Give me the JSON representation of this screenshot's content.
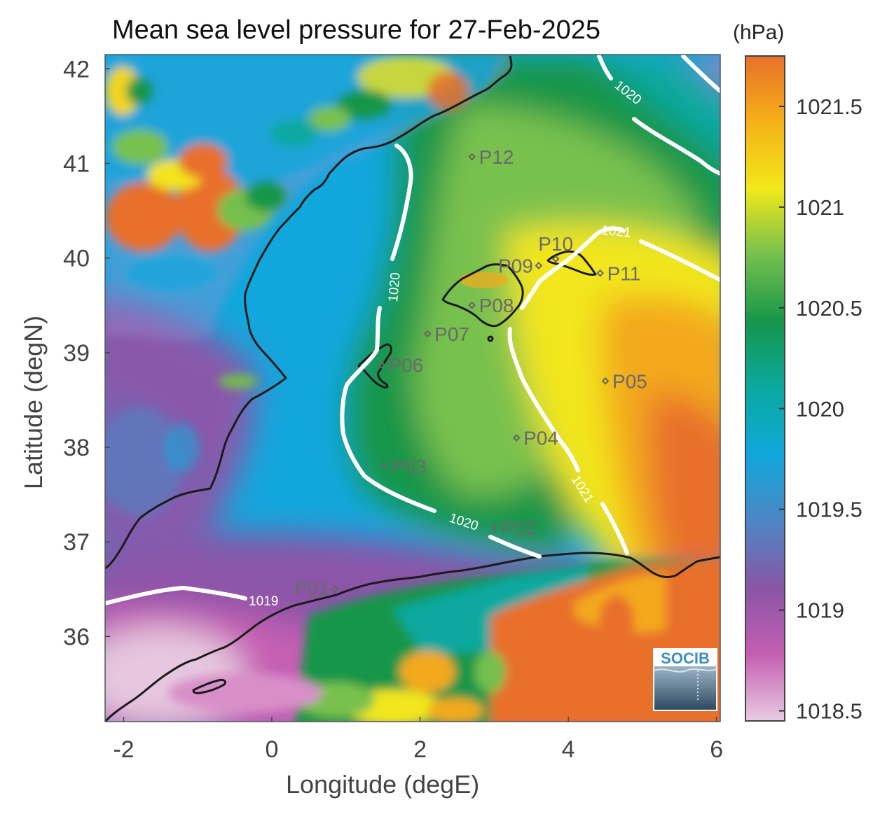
{
  "title": "Mean sea level pressure for 27-Feb-2025",
  "colorbar": {
    "unit": "(hPa)",
    "min": 1018.45,
    "max": 1021.75,
    "ticks": [
      "1018.5",
      "1019",
      "1019.5",
      "1020",
      "1020.5",
      "1021",
      "1021.5"
    ],
    "palette": [
      "#e9cbe2",
      "#c45fb2",
      "#8a55a6",
      "#4d86c4",
      "#11a7db",
      "#0aa9a0",
      "#16964a",
      "#74c04d",
      "#f2e81a",
      "#f5b117",
      "#e8702b"
    ]
  },
  "axes": {
    "xlabel": "Longitude (degE)",
    "ylabel": "Latitude (degN)",
    "xlim": [
      -2.25,
      6.05
    ],
    "ylim": [
      35.1,
      42.15
    ],
    "xticks": [
      "-2",
      "0",
      "2",
      "4",
      "6"
    ],
    "yticks": [
      "36",
      "37",
      "38",
      "39",
      "40",
      "41",
      "42"
    ]
  },
  "contours": [
    {
      "label": "1019",
      "level": 1019
    },
    {
      "label": "1020",
      "level": 1020
    },
    {
      "label": "1021",
      "level": 1021
    }
  ],
  "stations": [
    {
      "label": "P02",
      "lon": 3.0,
      "lat": 37.15
    },
    {
      "label": "P03",
      "lon": 1.52,
      "lat": 37.8
    },
    {
      "label": "P04",
      "lon": 3.3,
      "lat": 38.1
    },
    {
      "label": "P05",
      "lon": 4.5,
      "lat": 38.7
    },
    {
      "label": "P06",
      "lon": 1.48,
      "lat": 38.87
    },
    {
      "label": "P07",
      "lon": 2.1,
      "lat": 39.2
    },
    {
      "label": "P08",
      "lon": 2.7,
      "lat": 39.5
    },
    {
      "label": "P09",
      "lon": 3.6,
      "lat": 39.92
    },
    {
      "label": "P10",
      "lon": 3.83,
      "lat": 39.99
    },
    {
      "label": "P11",
      "lon": 4.43,
      "lat": 39.84
    },
    {
      "label": "P12",
      "lon": 2.7,
      "lat": 41.07
    },
    {
      "label": "P01",
      "lon": 0.85,
      "lat": 36.5
    }
  ],
  "logo": {
    "text": "SOCIB"
  }
}
